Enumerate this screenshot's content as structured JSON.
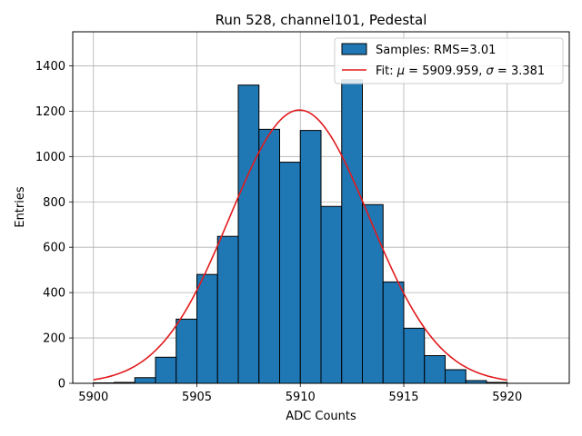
{
  "chart_data": {
    "type": "bar",
    "title": "Run 528, channel101, Pedestal",
    "xlabel": "ADC Counts",
    "ylabel": "Entries",
    "xlim": [
      5899,
      5923
    ],
    "ylim": [
      0,
      1550
    ],
    "xticks": [
      5900,
      5905,
      5910,
      5915,
      5920
    ],
    "yticks": [
      0,
      200,
      400,
      600,
      800,
      1000,
      1200,
      1400
    ],
    "grid": true,
    "legend_position": "top-right",
    "bar_color": "#1f77b4",
    "fit_color": "#e31a1c",
    "histogram": {
      "name": "Samples: RMS=3.01",
      "bin_edges": [
        5900,
        5901,
        5902,
        5903,
        5904,
        5905,
        5906,
        5907,
        5908,
        5909,
        5910,
        5911,
        5912,
        5913,
        5914,
        5915,
        5916,
        5917,
        5918,
        5919,
        5920
      ],
      "counts": [
        2,
        4,
        25,
        115,
        283,
        480,
        648,
        1315,
        1120,
        975,
        1115,
        780,
        1338,
        788,
        447,
        243,
        122,
        60,
        12,
        4
      ]
    },
    "fit": {
      "name": "Fit: μ = 5909.959, σ = 3.381",
      "label_prefix": "Fit: ",
      "mu_value": "5909.959",
      "sigma_value": "3.381",
      "mu": 5909.959,
      "sigma": 3.381,
      "amplitude": 1205,
      "x_range": [
        5900,
        5920
      ]
    }
  }
}
